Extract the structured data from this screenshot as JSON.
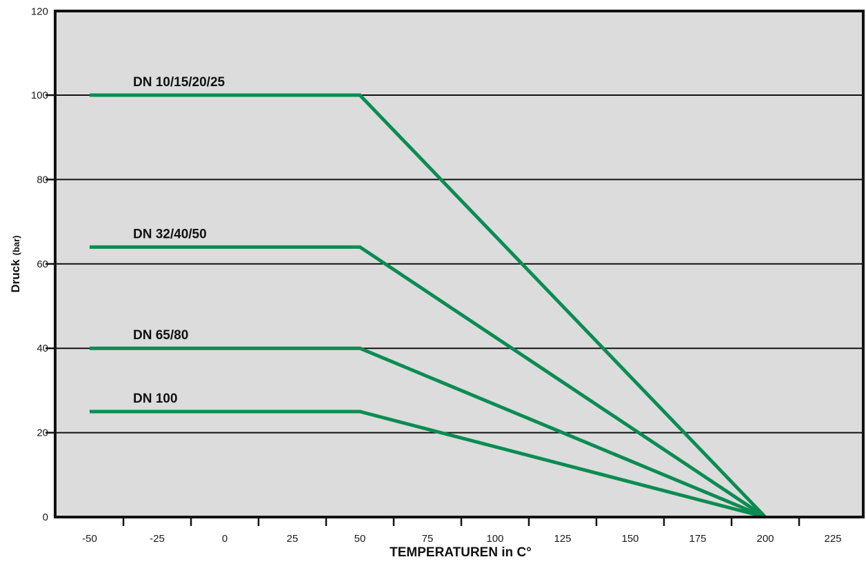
{
  "chart_data": {
    "type": "line",
    "title": "",
    "xlabel": "TEMPERATUREN in C°",
    "ylabel": "Druck",
    "ylabel_unit": "(bar)",
    "xlim": [
      -50,
      225
    ],
    "ylim": [
      0,
      120
    ],
    "x_ticks": [
      -50,
      -25,
      0,
      25,
      50,
      75,
      100,
      125,
      150,
      175,
      200,
      225
    ],
    "y_ticks": [
      0,
      20,
      40,
      60,
      80,
      100,
      120
    ],
    "grid": "horizontal",
    "background": "#dcdcdc",
    "series_color": "#0a8c52",
    "series": [
      {
        "name": "DN 10/15/20/25",
        "x": [
          -50,
          50,
          200
        ],
        "y": [
          100,
          100,
          0
        ]
      },
      {
        "name": "DN 32/40/50",
        "x": [
          -50,
          50,
          200
        ],
        "y": [
          64,
          64,
          0
        ]
      },
      {
        "name": "DN 65/80",
        "x": [
          -50,
          50,
          200
        ],
        "y": [
          40,
          40,
          0
        ]
      },
      {
        "name": "DN 100",
        "x": [
          -50,
          50,
          200
        ],
        "y": [
          25,
          25,
          0
        ]
      }
    ]
  }
}
